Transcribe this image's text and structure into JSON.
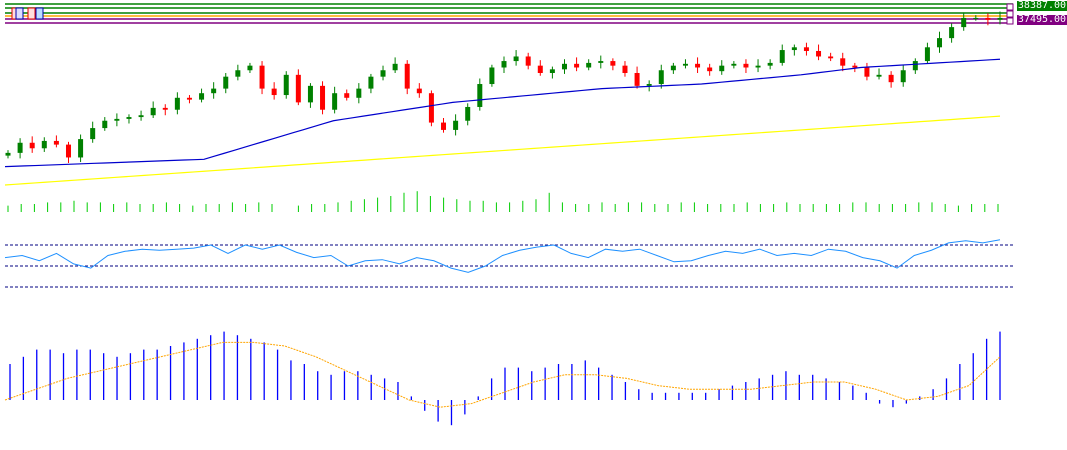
{
  "price_labels": [
    {
      "text": "38387.00",
      "color": "#008000"
    },
    {
      "text": "37495.00",
      "color": "#800080"
    }
  ],
  "colors": {
    "bull": "#008000",
    "bear": "#ff0000",
    "ma_fast": "#0000cc",
    "ma_slow": "#ffff00",
    "volume": "#00cc00",
    "rsi": "#1e90ff",
    "macd_hist": "#0000ff",
    "macd_signal": "#ffa500",
    "level_green": "#008000",
    "level_orange": "#ffa500",
    "level_purple": "#800080"
  },
  "chart_data": {
    "type": "candlestick",
    "closes": [
      35,
      46,
      40,
      48,
      44,
      30,
      50,
      62,
      70,
      72,
      74,
      76,
      84,
      82,
      95,
      93,
      100,
      105,
      118,
      125,
      130,
      105,
      98,
      120,
      90,
      108,
      82,
      100,
      95,
      105,
      118,
      125,
      132,
      105,
      100,
      68,
      60,
      70,
      85,
      110,
      128,
      135,
      140,
      130,
      122,
      126,
      132,
      128,
      133,
      135,
      130,
      122,
      108,
      110,
      125,
      130,
      132,
      128,
      124,
      130,
      132,
      128,
      130,
      133,
      147,
      150,
      146,
      140,
      138,
      130,
      128,
      118,
      120,
      112,
      125,
      135,
      150,
      160,
      172,
      182,
      182,
      180,
      182
    ],
    "ma_fast": [
      [
        0,
        20
      ],
      [
        0.2,
        28
      ],
      [
        0.33,
        70
      ],
      [
        0.45,
        90
      ],
      [
        0.6,
        105
      ],
      [
        0.7,
        110
      ],
      [
        0.8,
        120
      ],
      [
        0.86,
        128
      ],
      [
        1,
        137
      ]
    ],
    "ma_slow": [
      [
        0,
        0
      ],
      [
        1,
        75
      ]
    ],
    "volume": [
      4,
      5,
      5,
      6,
      6,
      7,
      6,
      6,
      5,
      6,
      5,
      5,
      6,
      5,
      4,
      5,
      5,
      6,
      5,
      6,
      5,
      0,
      4,
      5,
      5,
      6,
      7,
      8,
      9,
      10,
      12,
      13,
      10,
      9,
      8,
      7,
      7,
      6,
      6,
      7,
      8,
      12,
      6,
      5,
      5,
      6,
      5,
      6,
      6,
      5,
      5,
      6,
      6,
      5,
      5,
      5,
      6,
      5,
      5,
      6,
      5,
      5,
      5,
      5,
      6,
      6,
      5,
      5,
      5,
      6,
      6,
      5,
      4,
      5,
      5,
      5
    ],
    "rsi": [
      58,
      60,
      55,
      62,
      52,
      48,
      60,
      64,
      66,
      65,
      66,
      67,
      70,
      62,
      70,
      66,
      70,
      63,
      58,
      60,
      50,
      55,
      56,
      52,
      58,
      55,
      48,
      44,
      50,
      60,
      65,
      68,
      70,
      62,
      58,
      66,
      64,
      66,
      60,
      54,
      55,
      60,
      64,
      62,
      66,
      60,
      62,
      60,
      66,
      64,
      58,
      55,
      48,
      60,
      65,
      72,
      74,
      72,
      75
    ],
    "rsi_levels": [
      70,
      50,
      30
    ],
    "macd_hist": [
      10,
      12,
      14,
      14,
      13,
      14,
      14,
      13,
      12,
      13,
      14,
      14,
      15,
      16,
      17,
      18,
      19,
      18,
      17,
      16,
      14,
      11,
      10,
      8,
      7,
      8,
      8,
      7,
      6,
      5,
      1,
      -3,
      -6,
      -7,
      -4,
      1,
      6,
      9,
      9,
      8,
      9,
      10,
      10,
      11,
      9,
      7,
      5,
      3,
      2,
      2,
      2,
      2,
      2,
      3,
      4,
      5,
      6,
      7,
      8,
      7,
      7,
      6,
      5,
      4,
      2,
      -1,
      -2,
      -1,
      1,
      3,
      6,
      10,
      13,
      17,
      19
    ],
    "macd_signal": [
      0,
      3,
      6,
      8,
      10,
      12,
      14,
      16,
      16,
      15,
      12,
      8,
      4,
      0,
      -2,
      -1,
      2,
      5,
      7,
      7,
      6,
      4,
      3,
      3,
      3,
      4,
      5,
      5,
      3,
      0,
      1,
      4,
      12
    ]
  }
}
